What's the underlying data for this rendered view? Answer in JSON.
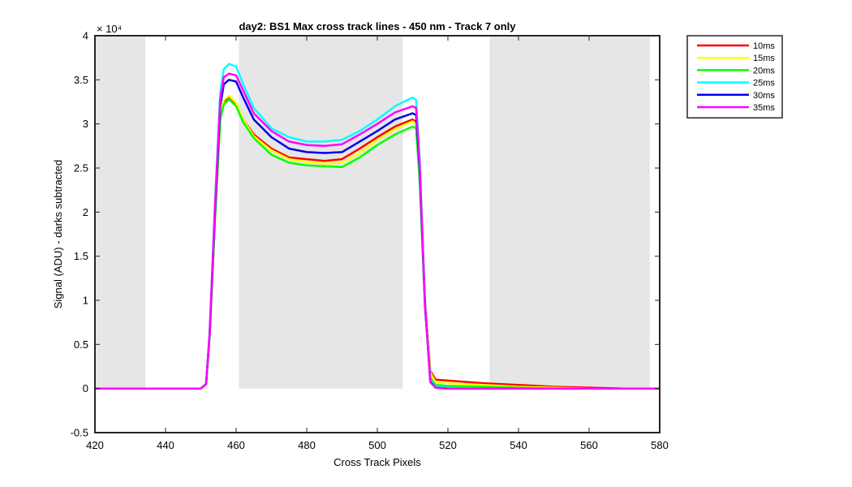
{
  "chart_data": {
    "type": "line",
    "title": "day2: BS1  Max cross track lines - 450 nm - Track 7 only",
    "xlabel": "Cross Track Pixels",
    "ylabel": "Signal (ADU) - darks subtracted",
    "y_exponent_label": "× 10⁴",
    "xlim": [
      420,
      580
    ],
    "ylim": [
      -0.5,
      4
    ],
    "x_ticks": [
      420,
      440,
      460,
      480,
      500,
      520,
      540,
      560,
      580
    ],
    "x_tick_labels": [
      "420",
      "440",
      "460",
      "480",
      "500",
      "520",
      "540",
      "560",
      "580"
    ],
    "y_ticks": [
      -0.5,
      0,
      0.5,
      1,
      1.5,
      2,
      2.5,
      3,
      3.5,
      4
    ],
    "y_tick_labels": [
      "-0.5",
      "0",
      "0.5",
      "1",
      "1.5",
      "2",
      "2.5",
      "3",
      "3.5",
      "4"
    ],
    "shaded_regions": [
      {
        "x0": 420,
        "x1": 434.3,
        "y0": 0,
        "y1": 4
      },
      {
        "x0": 460.8,
        "x1": 507.2,
        "y0": 0,
        "y1": 4
      },
      {
        "x0": 531.8,
        "x1": 577.2,
        "y0": 0,
        "y1": 4
      }
    ],
    "shade_color": "#e6e6e6",
    "legend_position": "outside-top-right",
    "grid": false,
    "series": [
      {
        "name": "10ms",
        "color": "#ff0000",
        "points": [
          [
            420,
            0
          ],
          [
            450,
            0
          ],
          [
            451.5,
            0.05
          ],
          [
            452.5,
            0.6
          ],
          [
            454,
            1.9
          ],
          [
            455.5,
            3.05
          ],
          [
            456.5,
            3.25
          ],
          [
            458,
            3.3
          ],
          [
            460,
            3.22
          ],
          [
            462,
            3.05
          ],
          [
            465,
            2.88
          ],
          [
            470,
            2.72
          ],
          [
            475,
            2.62
          ],
          [
            480,
            2.6
          ],
          [
            485,
            2.58
          ],
          [
            490,
            2.6
          ],
          [
            495,
            2.72
          ],
          [
            500,
            2.85
          ],
          [
            505,
            2.97
          ],
          [
            510,
            3.05
          ],
          [
            511,
            3.02
          ],
          [
            512,
            2.4
          ],
          [
            513.5,
            1.0
          ],
          [
            515,
            0.2
          ],
          [
            516.5,
            0.1
          ],
          [
            520,
            0.09
          ],
          [
            530,
            0.06
          ],
          [
            540,
            0.04
          ],
          [
            550,
            0.02
          ],
          [
            560,
            0.01
          ],
          [
            570,
            0
          ],
          [
            580,
            0
          ]
        ]
      },
      {
        "name": "15ms",
        "color": "#ffff00",
        "points": [
          [
            420,
            0
          ],
          [
            450,
            0
          ],
          [
            451.5,
            0.05
          ],
          [
            452.5,
            0.6
          ],
          [
            454,
            1.9
          ],
          [
            455.5,
            3.05
          ],
          [
            456.5,
            3.27
          ],
          [
            458,
            3.32
          ],
          [
            460,
            3.24
          ],
          [
            462,
            3.05
          ],
          [
            465,
            2.86
          ],
          [
            470,
            2.7
          ],
          [
            475,
            2.6
          ],
          [
            480,
            2.57
          ],
          [
            485,
            2.55
          ],
          [
            490,
            2.56
          ],
          [
            495,
            2.67
          ],
          [
            500,
            2.82
          ],
          [
            505,
            2.94
          ],
          [
            510,
            3.03
          ],
          [
            511,
            3.0
          ],
          [
            512,
            2.4
          ],
          [
            513.5,
            1.0
          ],
          [
            515,
            0.18
          ],
          [
            516.5,
            0.07
          ],
          [
            520,
            0.06
          ],
          [
            530,
            0.04
          ],
          [
            540,
            0.02
          ],
          [
            550,
            0.01
          ],
          [
            560,
            0
          ],
          [
            580,
            0
          ]
        ]
      },
      {
        "name": "20ms",
        "color": "#00ff00",
        "points": [
          [
            420,
            0
          ],
          [
            450,
            0
          ],
          [
            451.5,
            0.05
          ],
          [
            452.5,
            0.6
          ],
          [
            454,
            1.9
          ],
          [
            455.5,
            3.05
          ],
          [
            456.5,
            3.22
          ],
          [
            458,
            3.28
          ],
          [
            460,
            3.2
          ],
          [
            462,
            3.02
          ],
          [
            465,
            2.84
          ],
          [
            470,
            2.65
          ],
          [
            475,
            2.56
          ],
          [
            480,
            2.53
          ],
          [
            485,
            2.52
          ],
          [
            490,
            2.51
          ],
          [
            495,
            2.62
          ],
          [
            500,
            2.76
          ],
          [
            505,
            2.88
          ],
          [
            510,
            2.97
          ],
          [
            511,
            2.95
          ],
          [
            512,
            2.35
          ],
          [
            513.5,
            0.95
          ],
          [
            515,
            0.12
          ],
          [
            516.5,
            0.04
          ],
          [
            520,
            0.03
          ],
          [
            530,
            0.02
          ],
          [
            540,
            0.01
          ],
          [
            550,
            0
          ],
          [
            580,
            0
          ]
        ]
      },
      {
        "name": "25ms",
        "color": "#00ffff",
        "points": [
          [
            420,
            0
          ],
          [
            450,
            0
          ],
          [
            451.5,
            0.05
          ],
          [
            452.5,
            0.65
          ],
          [
            454,
            2.1
          ],
          [
            455.5,
            3.35
          ],
          [
            456.5,
            3.62
          ],
          [
            458,
            3.68
          ],
          [
            460,
            3.65
          ],
          [
            462,
            3.45
          ],
          [
            465,
            3.18
          ],
          [
            470,
            2.95
          ],
          [
            475,
            2.85
          ],
          [
            480,
            2.8
          ],
          [
            485,
            2.8
          ],
          [
            490,
            2.82
          ],
          [
            495,
            2.92
          ],
          [
            500,
            3.05
          ],
          [
            505,
            3.2
          ],
          [
            510,
            3.3
          ],
          [
            511,
            3.27
          ],
          [
            512,
            2.6
          ],
          [
            513.5,
            1.0
          ],
          [
            515,
            0.1
          ],
          [
            516.5,
            0.02
          ],
          [
            520,
            0.01
          ],
          [
            530,
            0
          ],
          [
            580,
            0
          ]
        ]
      },
      {
        "name": "30ms",
        "color": "#0000ee",
        "points": [
          [
            420,
            0
          ],
          [
            450,
            0
          ],
          [
            451.5,
            0.05
          ],
          [
            452.5,
            0.62
          ],
          [
            454,
            2.0
          ],
          [
            455.5,
            3.2
          ],
          [
            456.5,
            3.45
          ],
          [
            458,
            3.5
          ],
          [
            460,
            3.48
          ],
          [
            462,
            3.3
          ],
          [
            465,
            3.05
          ],
          [
            470,
            2.85
          ],
          [
            475,
            2.72
          ],
          [
            480,
            2.68
          ],
          [
            485,
            2.67
          ],
          [
            490,
            2.68
          ],
          [
            495,
            2.8
          ],
          [
            500,
            2.92
          ],
          [
            505,
            3.05
          ],
          [
            510,
            3.12
          ],
          [
            511,
            3.1
          ],
          [
            512,
            2.5
          ],
          [
            513.5,
            0.95
          ],
          [
            515,
            0.08
          ],
          [
            516.5,
            0.01
          ],
          [
            520,
            0
          ],
          [
            580,
            0
          ]
        ]
      },
      {
        "name": "35ms",
        "color": "#ff00ff",
        "points": [
          [
            420,
            0
          ],
          [
            450,
            0
          ],
          [
            451.5,
            0.05
          ],
          [
            452.5,
            0.63
          ],
          [
            454,
            2.05
          ],
          [
            455.5,
            3.28
          ],
          [
            456.5,
            3.53
          ],
          [
            458,
            3.57
          ],
          [
            460,
            3.55
          ],
          [
            462,
            3.38
          ],
          [
            465,
            3.12
          ],
          [
            470,
            2.92
          ],
          [
            475,
            2.8
          ],
          [
            480,
            2.76
          ],
          [
            485,
            2.75
          ],
          [
            490,
            2.77
          ],
          [
            495,
            2.88
          ],
          [
            500,
            3.0
          ],
          [
            505,
            3.13
          ],
          [
            510,
            3.2
          ],
          [
            511,
            3.18
          ],
          [
            512,
            2.55
          ],
          [
            513.5,
            0.98
          ],
          [
            515,
            0.07
          ],
          [
            516.5,
            0.01
          ],
          [
            520,
            0
          ],
          [
            580,
            0
          ]
        ]
      }
    ]
  }
}
